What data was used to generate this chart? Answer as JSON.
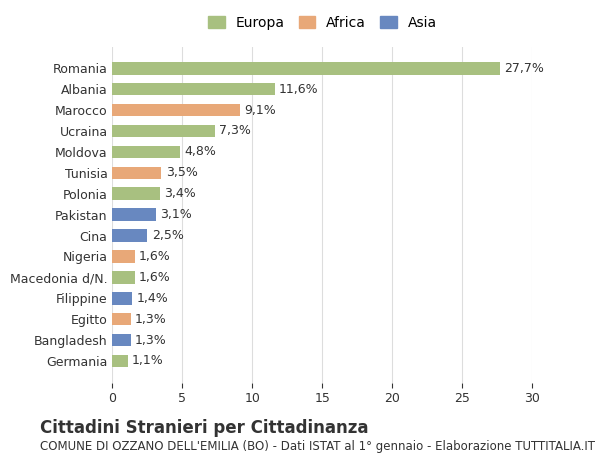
{
  "categories": [
    "Romania",
    "Albania",
    "Marocco",
    "Ucraina",
    "Moldova",
    "Tunisia",
    "Polonia",
    "Pakistan",
    "Cina",
    "Nigeria",
    "Macedonia d/N.",
    "Filippine",
    "Egitto",
    "Bangladesh",
    "Germania"
  ],
  "values": [
    27.7,
    11.6,
    9.1,
    7.3,
    4.8,
    3.5,
    3.4,
    3.1,
    2.5,
    1.6,
    1.6,
    1.4,
    1.3,
    1.3,
    1.1
  ],
  "labels": [
    "27,7%",
    "11,6%",
    "9,1%",
    "7,3%",
    "4,8%",
    "3,5%",
    "3,4%",
    "3,1%",
    "2,5%",
    "1,6%",
    "1,6%",
    "1,4%",
    "1,3%",
    "1,3%",
    "1,1%"
  ],
  "continents": [
    "Europa",
    "Europa",
    "Africa",
    "Europa",
    "Europa",
    "Africa",
    "Europa",
    "Asia",
    "Asia",
    "Africa",
    "Europa",
    "Asia",
    "Africa",
    "Asia",
    "Europa"
  ],
  "colors": {
    "Europa": "#a8c080",
    "Africa": "#e8a878",
    "Asia": "#6888c0"
  },
  "legend_order": [
    "Europa",
    "Africa",
    "Asia"
  ],
  "xlim": [
    0,
    30
  ],
  "xticks": [
    0,
    5,
    10,
    15,
    20,
    25,
    30
  ],
  "title": "Cittadini Stranieri per Cittadinanza",
  "subtitle": "COMUNE DI OZZANO DELL'EMILIA (BO) - Dati ISTAT al 1° gennaio - Elaborazione TUTTITALIA.IT",
  "bar_bg_color": "#ffffff",
  "grid_color": "#dddddd",
  "text_color": "#333333",
  "label_fontsize": 9,
  "tick_fontsize": 9,
  "title_fontsize": 12,
  "subtitle_fontsize": 8.5
}
